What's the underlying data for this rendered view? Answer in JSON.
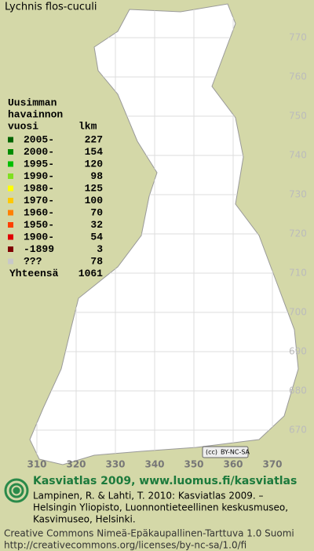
{
  "title": "Lychnis flos-cuculi",
  "legend": {
    "header": [
      "Uusimman",
      "havainnon"
    ],
    "col_year": "vuosi",
    "col_count": "lkm",
    "rows": [
      {
        "label": "2005-",
        "count": 227,
        "color": "#006400"
      },
      {
        "label": "2000-",
        "count": 154,
        "color": "#008c00"
      },
      {
        "label": "1995-",
        "count": 120,
        "color": "#00c000"
      },
      {
        "label": "1990-",
        "count": 98,
        "color": "#80e020"
      },
      {
        "label": "1980-",
        "count": 125,
        "color": "#ffff00"
      },
      {
        "label": "1970-",
        "count": 100,
        "color": "#ffc800"
      },
      {
        "label": "1960-",
        "count": 70,
        "color": "#ff8000"
      },
      {
        "label": "1950-",
        "count": 32,
        "color": "#ff4000"
      },
      {
        "label": "1900-",
        "count": 54,
        "color": "#e00000"
      },
      {
        "label": "-1899",
        "count": 3,
        "color": "#800000"
      },
      {
        "label": "???",
        "count": 78,
        "color": "#c8c8c8"
      }
    ],
    "total_label": "Yhteensä",
    "total": 1061
  },
  "map": {
    "yticks": [
      770,
      760,
      750,
      740,
      730,
      720,
      710,
      700,
      690,
      680,
      670
    ],
    "xticks": [
      310,
      320,
      330,
      340,
      350,
      360,
      370
    ]
  },
  "license_badge": "BY-NC-SA",
  "footer": {
    "heading": "Kasviatlas 2009, www.luomus.fi/kasviatlas",
    "citation": [
      "Lampinen, R. & Lahti, T. 2010: Kasviatlas 2009. –",
      "Helsingin Yliopisto, Luonnontieteellinen keskusmuseo,",
      "Kasvimuseo, Helsinki."
    ],
    "license": [
      "Creative Commons Nimeä-Epäkaupallinen-Tarttuva 1.0 Suomi",
      "http://creativecommons.org/licenses/by-nc-sa/1.0/fi"
    ]
  }
}
